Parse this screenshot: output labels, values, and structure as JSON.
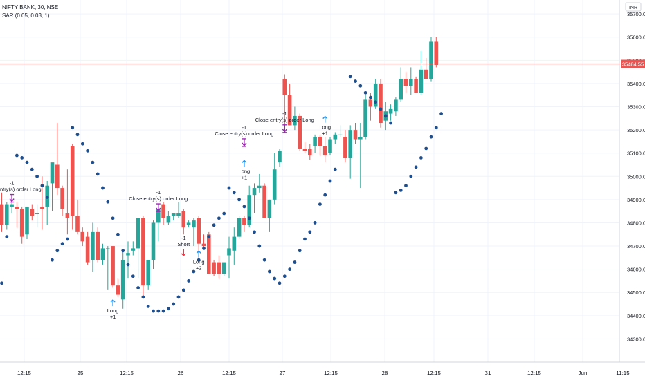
{
  "header": {
    "symbol_line": "NIFTY BANK, 30, NSE",
    "indicator_line": "SAR (0.05, 0.03, 1)"
  },
  "price_axis": {
    "ticks": [
      "35700.00",
      "35600.00",
      "35500.00",
      "35400.00",
      "35300.00",
      "35200.00",
      "35100.00",
      "35000.00",
      "34900.00",
      "34800.00",
      "34700.00",
      "34600.00",
      "34500.00",
      "34400.00",
      "34300.00"
    ],
    "current_price_label": "35484.55"
  },
  "currency_badge": "INR",
  "time_axis": {
    "labels": [
      "12:15",
      "25",
      "12:15",
      "26",
      "12:15",
      "27",
      "12:15",
      "28",
      "12:15",
      "31",
      "12:15",
      "Jun",
      "11:15"
    ]
  },
  "colors": {
    "up": "#26a69a",
    "down": "#ef5350",
    "sar": "#1f4e8c",
    "buy_arrow": "#2196f3",
    "sell_arrow": "#f23645",
    "close_marker": "#9c27b0",
    "price_line": "#ef5350"
  },
  "chart_data": {
    "type": "candlestick",
    "ylim": [
      34200,
      35760
    ],
    "candles": [
      {
        "o": 34880,
        "h": 34930,
        "l": 34760,
        "c": 34790
      },
      {
        "o": 34790,
        "h": 34890,
        "l": 34770,
        "c": 34880
      },
      {
        "o": 34870,
        "h": 34890,
        "l": 34840,
        "c": 34880
      },
      {
        "o": 34870,
        "h": 34890,
        "l": 34780,
        "c": 34860
      },
      {
        "o": 34860,
        "h": 34870,
        "l": 34710,
        "c": 34740
      },
      {
        "o": 34750,
        "h": 34870,
        "l": 34730,
        "c": 34870
      },
      {
        "o": 34860,
        "h": 34880,
        "l": 34810,
        "c": 34830
      },
      {
        "o": 34840,
        "h": 34880,
        "l": 34780,
        "c": 34840
      },
      {
        "o": 34870,
        "h": 35000,
        "l": 34770,
        "c": 34860
      },
      {
        "o": 34870,
        "h": 34980,
        "l": 34790,
        "c": 34960
      },
      {
        "o": 34970,
        "h": 35050,
        "l": 34850,
        "c": 35060
      },
      {
        "o": 35050,
        "h": 35230,
        "l": 34920,
        "c": 34950
      },
      {
        "o": 34950,
        "h": 34960,
        "l": 34830,
        "c": 34860
      },
      {
        "o": 34840,
        "h": 35030,
        "l": 34750,
        "c": 34820
      },
      {
        "o": 35130,
        "h": 35140,
        "l": 34770,
        "c": 34830
      },
      {
        "o": 34830,
        "h": 34900,
        "l": 34750,
        "c": 34760
      },
      {
        "o": 34760,
        "h": 34780,
        "l": 34700,
        "c": 34720
      },
      {
        "o": 34740,
        "h": 34760,
        "l": 34620,
        "c": 34630
      },
      {
        "o": 34640,
        "h": 34800,
        "l": 34590,
        "c": 34760
      },
      {
        "o": 34760,
        "h": 34780,
        "l": 34630,
        "c": 34640
      },
      {
        "o": 34640,
        "h": 34710,
        "l": 34620,
        "c": 34690
      },
      {
        "o": 34690,
        "h": 34700,
        "l": 34510,
        "c": 34690
      },
      {
        "o": 34700,
        "h": 34700,
        "l": 34520,
        "c": 34530
      },
      {
        "o": 34530,
        "h": 34560,
        "l": 34480,
        "c": 34490
      },
      {
        "o": 34470,
        "h": 34680,
        "l": 34430,
        "c": 34640
      },
      {
        "o": 34660,
        "h": 34720,
        "l": 34560,
        "c": 34670
      },
      {
        "o": 34680,
        "h": 34720,
        "l": 34660,
        "c": 34690
      },
      {
        "o": 34690,
        "h": 34820,
        "l": 34560,
        "c": 34820
      },
      {
        "o": 34820,
        "h": 34830,
        "l": 34480,
        "c": 34530
      },
      {
        "o": 34530,
        "h": 34630,
        "l": 34510,
        "c": 34640
      },
      {
        "o": 34640,
        "h": 34810,
        "l": 34600,
        "c": 34800
      },
      {
        "o": 34800,
        "h": 34880,
        "l": 34720,
        "c": 34860
      },
      {
        "o": 34880,
        "h": 34890,
        "l": 34790,
        "c": 34820
      },
      {
        "o": 34800,
        "h": 34850,
        "l": 34790,
        "c": 34830
      },
      {
        "o": 34830,
        "h": 34840,
        "l": 34810,
        "c": 34840
      },
      {
        "o": 34830,
        "h": 34890,
        "l": 34820,
        "c": 34840
      },
      {
        "o": 34850,
        "h": 34860,
        "l": 34750,
        "c": 34780
      },
      {
        "o": 34790,
        "h": 34810,
        "l": 34780,
        "c": 34800
      },
      {
        "o": 34780,
        "h": 34820,
        "l": 34700,
        "c": 34810
      },
      {
        "o": 34820,
        "h": 34830,
        "l": 34650,
        "c": 34710
      },
      {
        "o": 34710,
        "h": 34750,
        "l": 34690,
        "c": 34700
      },
      {
        "o": 34750,
        "h": 34760,
        "l": 34580,
        "c": 34580
      },
      {
        "o": 34630,
        "h": 34640,
        "l": 34570,
        "c": 34580
      },
      {
        "o": 34630,
        "h": 34660,
        "l": 34560,
        "c": 34580
      },
      {
        "o": 34580,
        "h": 34630,
        "l": 34570,
        "c": 34630
      },
      {
        "o": 34660,
        "h": 34740,
        "l": 34560,
        "c": 34690
      },
      {
        "o": 34680,
        "h": 34780,
        "l": 34620,
        "c": 34740
      },
      {
        "o": 34740,
        "h": 34830,
        "l": 34730,
        "c": 34820
      },
      {
        "o": 34820,
        "h": 34830,
        "l": 34760,
        "c": 34790
      },
      {
        "o": 34790,
        "h": 34960,
        "l": 34780,
        "c": 34920
      },
      {
        "o": 34920,
        "h": 34970,
        "l": 34840,
        "c": 34950
      },
      {
        "o": 34950,
        "h": 35010,
        "l": 34930,
        "c": 34960
      },
      {
        "o": 34960,
        "h": 34970,
        "l": 34820,
        "c": 34820
      },
      {
        "o": 34820,
        "h": 34900,
        "l": 34760,
        "c": 34900
      },
      {
        "o": 34900,
        "h": 35100,
        "l": 34880,
        "c": 35030
      },
      {
        "o": 35060,
        "h": 35120,
        "l": 35040,
        "c": 35110
      },
      {
        "o": 35420,
        "h": 35440,
        "l": 35220,
        "c": 35350
      },
      {
        "o": 35350,
        "h": 35400,
        "l": 35220,
        "c": 35220
      },
      {
        "o": 35220,
        "h": 35300,
        "l": 35200,
        "c": 35260
      },
      {
        "o": 35260,
        "h": 35270,
        "l": 35110,
        "c": 35120
      },
      {
        "o": 35120,
        "h": 35150,
        "l": 35100,
        "c": 35110
      },
      {
        "o": 35120,
        "h": 35140,
        "l": 35070,
        "c": 35090
      },
      {
        "o": 35130,
        "h": 35180,
        "l": 35100,
        "c": 35170
      },
      {
        "o": 35170,
        "h": 35180,
        "l": 35090,
        "c": 35130
      },
      {
        "o": 35130,
        "h": 35170,
        "l": 35060,
        "c": 35090
      },
      {
        "o": 35100,
        "h": 35170,
        "l": 35090,
        "c": 35160
      },
      {
        "o": 35160,
        "h": 35190,
        "l": 35140,
        "c": 35180
      },
      {
        "o": 35180,
        "h": 35220,
        "l": 35170,
        "c": 35180
      },
      {
        "o": 35170,
        "h": 35200,
        "l": 35060,
        "c": 35080
      },
      {
        "o": 35080,
        "h": 35220,
        "l": 34990,
        "c": 35200
      },
      {
        "o": 35200,
        "h": 35230,
        "l": 35140,
        "c": 35160
      },
      {
        "o": 35160,
        "h": 35230,
        "l": 34950,
        "c": 35170
      },
      {
        "o": 35170,
        "h": 35350,
        "l": 35160,
        "c": 35330
      },
      {
        "o": 35330,
        "h": 35360,
        "l": 35240,
        "c": 35300
      },
      {
        "o": 35300,
        "h": 35420,
        "l": 35290,
        "c": 35400
      },
      {
        "o": 35400,
        "h": 35420,
        "l": 35210,
        "c": 35230
      },
      {
        "o": 35240,
        "h": 35320,
        "l": 35200,
        "c": 35280
      },
      {
        "o": 35270,
        "h": 35310,
        "l": 35240,
        "c": 35290
      },
      {
        "o": 35280,
        "h": 35340,
        "l": 35260,
        "c": 35330
      },
      {
        "o": 35330,
        "h": 35470,
        "l": 35320,
        "c": 35420
      },
      {
        "o": 35420,
        "h": 35450,
        "l": 35360,
        "c": 35390
      },
      {
        "o": 35390,
        "h": 35470,
        "l": 35350,
        "c": 35420
      },
      {
        "o": 35420,
        "h": 35430,
        "l": 35360,
        "c": 35360
      },
      {
        "o": 35360,
        "h": 35540,
        "l": 35350,
        "c": 35460
      },
      {
        "o": 35460,
        "h": 35510,
        "l": 35420,
        "c": 35420
      },
      {
        "o": 35420,
        "h": 35600,
        "l": 35410,
        "c": 35580
      },
      {
        "o": 35580,
        "h": 35600,
        "l": 35470,
        "c": 35480
      }
    ],
    "sar": [
      {
        "i": 0,
        "v": 34540
      },
      {
        "i": 1,
        "v": 34740
      },
      {
        "i": 3,
        "v": 35090
      },
      {
        "i": 4,
        "v": 35080
      },
      {
        "i": 5,
        "v": 35060
      },
      {
        "i": 6,
        "v": 35030
      },
      {
        "i": 7,
        "v": 35000
      },
      {
        "i": 8,
        "v": 34960
      },
      {
        "i": 9,
        "v": 34910
      },
      {
        "i": 10,
        "v": 34640
      },
      {
        "i": 11,
        "v": 34680
      },
      {
        "i": 12,
        "v": 34710
      },
      {
        "i": 13,
        "v": 34730
      },
      {
        "i": 14,
        "v": 35210
      },
      {
        "i": 15,
        "v": 35180
      },
      {
        "i": 16,
        "v": 35140
      },
      {
        "i": 17,
        "v": 35110
      },
      {
        "i": 18,
        "v": 35060
      },
      {
        "i": 19,
        "v": 35010
      },
      {
        "i": 20,
        "v": 34950
      },
      {
        "i": 21,
        "v": 34890
      },
      {
        "i": 22,
        "v": 34820
      },
      {
        "i": 23,
        "v": 34750
      },
      {
        "i": 24,
        "v": 34680
      },
      {
        "i": 25,
        "v": 34620
      },
      {
        "i": 26,
        "v": 34570
      },
      {
        "i": 27,
        "v": 34520
      },
      {
        "i": 28,
        "v": 34480
      },
      {
        "i": 29,
        "v": 34440
      },
      {
        "i": 30,
        "v": 34420
      },
      {
        "i": 31,
        "v": 34420
      },
      {
        "i": 32,
        "v": 34420
      },
      {
        "i": 33,
        "v": 34430
      },
      {
        "i": 34,
        "v": 34450
      },
      {
        "i": 35,
        "v": 34480
      },
      {
        "i": 36,
        "v": 34510
      },
      {
        "i": 37,
        "v": 34550
      },
      {
        "i": 38,
        "v": 34590
      },
      {
        "i": 39,
        "v": 34640
      },
      {
        "i": 40,
        "v": 34690
      },
      {
        "i": 41,
        "v": 34740
      },
      {
        "i": 42,
        "v": 34790
      },
      {
        "i": 43,
        "v": 34820
      },
      {
        "i": 44,
        "v": 34840
      },
      {
        "i": 45,
        "v": 34950
      },
      {
        "i": 46,
        "v": 34930
      },
      {
        "i": 47,
        "v": 34900
      },
      {
        "i": 48,
        "v": 34870
      },
      {
        "i": 49,
        "v": 34820
      },
      {
        "i": 50,
        "v": 34760
      },
      {
        "i": 51,
        "v": 34700
      },
      {
        "i": 52,
        "v": 34640
      },
      {
        "i": 53,
        "v": 34590
      },
      {
        "i": 54,
        "v": 34560
      },
      {
        "i": 55,
        "v": 34540
      },
      {
        "i": 56,
        "v": 34570
      },
      {
        "i": 57,
        "v": 34600
      },
      {
        "i": 58,
        "v": 34630
      },
      {
        "i": 59,
        "v": 34680
      },
      {
        "i": 60,
        "v": 34730
      },
      {
        "i": 61,
        "v": 34760
      },
      {
        "i": 62,
        "v": 34800
      },
      {
        "i": 63,
        "v": 34880
      },
      {
        "i": 64,
        "v": 34920
      },
      {
        "i": 65,
        "v": 34980
      },
      {
        "i": 66,
        "v": 35030
      },
      {
        "i": 69,
        "v": 35430
      },
      {
        "i": 70,
        "v": 35410
      },
      {
        "i": 71,
        "v": 35390
      },
      {
        "i": 72,
        "v": 35360
      },
      {
        "i": 73,
        "v": 35340
      },
      {
        "i": 74,
        "v": 35320
      },
      {
        "i": 75,
        "v": 35290
      },
      {
        "i": 76,
        "v": 35260
      },
      {
        "i": 77,
        "v": 35230
      },
      {
        "i": 78,
        "v": 34930
      },
      {
        "i": 79,
        "v": 34940
      },
      {
        "i": 80,
        "v": 34960
      },
      {
        "i": 81,
        "v": 35000
      },
      {
        "i": 82,
        "v": 35040
      },
      {
        "i": 83,
        "v": 35080
      },
      {
        "i": 84,
        "v": 35120
      },
      {
        "i": 85,
        "v": 35170
      },
      {
        "i": 86,
        "v": 35210
      },
      {
        "i": 87,
        "v": 35270
      }
    ],
    "annotations": [
      {
        "i": 2,
        "kind": "close",
        "price": 34880,
        "lines": [
          "-1",
          "Close entry(s) order Long"
        ]
      },
      {
        "i": 22,
        "kind": "buy",
        "price": 34480,
        "lines": [
          "Long",
          "+1"
        ]
      },
      {
        "i": 31,
        "kind": "close",
        "price": 34840,
        "lines": [
          "-1",
          "Close entry(s) order Long"
        ]
      },
      {
        "i": 36,
        "kind": "sell",
        "price": 34650,
        "lines": [
          "-1",
          "Short"
        ]
      },
      {
        "i": 39,
        "kind": "buy",
        "price": 34690,
        "lines": [
          "Long",
          "+2"
        ]
      },
      {
        "i": 48,
        "kind": "close",
        "price": 35120,
        "lines": [
          "-1",
          "Close entry(s) order Long"
        ]
      },
      {
        "i": 48,
        "kind": "buy",
        "price": 35080,
        "lines": [
          "Long",
          "+1"
        ]
      },
      {
        "i": 56,
        "kind": "close",
        "price": 35180,
        "lines": [
          "-1",
          "Close entry(s) order Long"
        ]
      },
      {
        "i": 64,
        "kind": "buy",
        "price": 35270,
        "lines": [
          "Long",
          "+1"
        ]
      }
    ],
    "current_price": 35484.55
  }
}
